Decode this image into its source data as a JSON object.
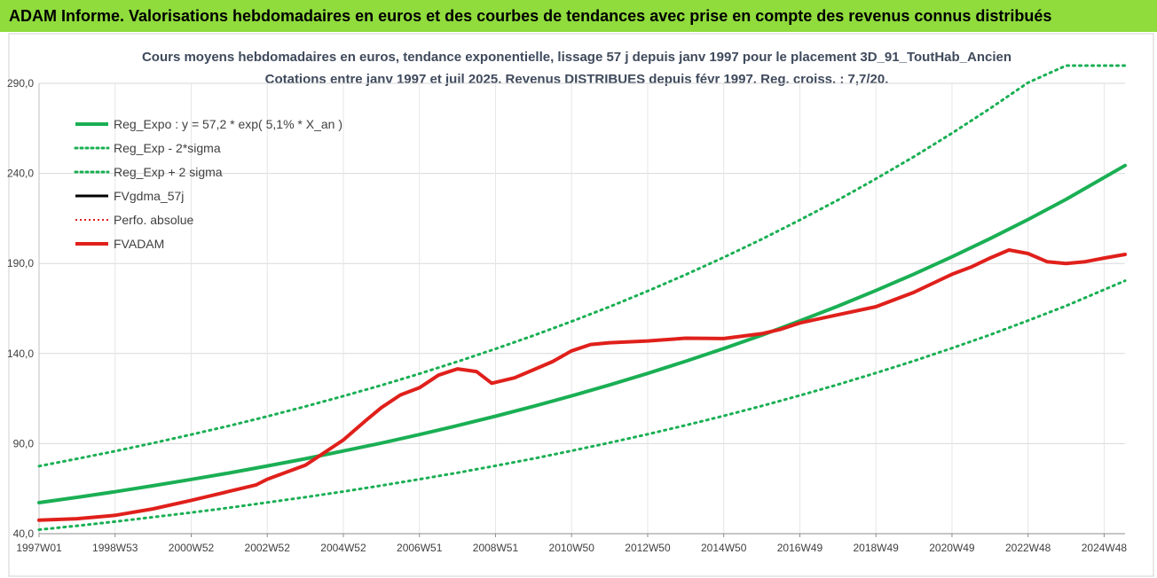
{
  "banner": {
    "title": "ADAM Informe. Valorisations hebdomadaires en euros et des courbes de tendances avec prise en compte des revenus connus distribués"
  },
  "colors": {
    "banner_bg": "#8fdc3c",
    "reg_expo": "#1aaf54",
    "fvgdma": "#000000",
    "perfo": "#e0201b",
    "fvadam": "#e0201b"
  },
  "chart_data": {
    "type": "line",
    "title": "Cours moyens hebdomadaires en euros, tendance exponentielle, lissage 57 j depuis janv 1997 pour le placement 3D_91_ToutHab_Ancien",
    "subtitle": "Cotations entre janv 1997 et juil 2025. Revenus DISTRIBUES depuis févr 1997. Reg. croiss. : 7,7/20.",
    "xlabel": "",
    "ylabel": "",
    "ylim": [
      40,
      290
    ],
    "yticks": [
      "40,0",
      "90,0",
      "140,0",
      "190,0",
      "240,0",
      "290,0"
    ],
    "yticks_values": [
      40,
      90,
      140,
      190,
      240,
      290
    ],
    "xlim": [
      1997.0,
      2025.55
    ],
    "xticks": [
      "1997W01",
      "1998W53",
      "2000W52",
      "2002W52",
      "2004W52",
      "2006W51",
      "2008W51",
      "2010W50",
      "2012W50",
      "2014W50",
      "2016W49",
      "2018W49",
      "2020W49",
      "2022W48",
      "2024W48"
    ],
    "xticks_values": [
      1997.0,
      1999.0,
      2001.0,
      2003.0,
      2005.0,
      2007.0,
      2009.0,
      2011.0,
      2013.0,
      2015.0,
      2017.0,
      2019.0,
      2021.0,
      2023.0,
      2025.0
    ],
    "grid": true,
    "legend_position": "top-left",
    "series": [
      {
        "name": "Reg_Expo : y = 57,2 * exp( 5,1% *  X_an )",
        "style": "solid-thick",
        "color": "#1aaf54",
        "x": [
          1997,
          1998,
          1999,
          2000,
          2001,
          2002,
          2003,
          2004,
          2005,
          2006,
          2007,
          2008,
          2009,
          2010,
          2011,
          2012,
          2013,
          2014,
          2015,
          2016,
          2017,
          2018,
          2019,
          2020,
          2021,
          2022,
          2023,
          2024,
          2025.55
        ],
        "values": [
          57.2,
          60.2,
          63.3,
          66.6,
          70.1,
          73.7,
          77.6,
          81.6,
          85.9,
          90.3,
          95.0,
          100.0,
          105.2,
          110.7,
          116.5,
          122.6,
          129.0,
          135.7,
          142.8,
          150.2,
          158.1,
          166.3,
          175.0,
          184.1,
          193.7,
          203.8,
          214.4,
          225.6,
          244.4
        ]
      },
      {
        "name": "Reg_Exp - 2*sigma",
        "style": "dotted",
        "color": "#1aaf54",
        "x": [
          1997,
          1998,
          1999,
          2000,
          2001,
          2002,
          2003,
          2004,
          2005,
          2006,
          2007,
          2008,
          2009,
          2010,
          2011,
          2012,
          2013,
          2014,
          2015,
          2016,
          2017,
          2018,
          2019,
          2020,
          2021,
          2022,
          2023,
          2024,
          2025.55
        ],
        "values": [
          42.2,
          44.4,
          46.7,
          49.2,
          51.7,
          54.4,
          57.3,
          60.3,
          63.4,
          66.7,
          70.2,
          73.8,
          77.7,
          81.7,
          86.0,
          90.5,
          95.2,
          100.2,
          105.4,
          110.9,
          116.7,
          122.8,
          129.2,
          135.9,
          143.0,
          150.4,
          158.3,
          166.5,
          180.4
        ]
      },
      {
        "name": "Reg_Exp + 2 sigma",
        "style": "dotted",
        "color": "#1aaf54",
        "x": [
          1997,
          1998,
          1999,
          2000,
          2001,
          2002,
          2003,
          2004,
          2005,
          2006,
          2007,
          2008,
          2009,
          2010,
          2011,
          2012,
          2013,
          2014,
          2015,
          2016,
          2017,
          2018,
          2019,
          2020,
          2021,
          2022,
          2023,
          2024,
          2024.3,
          2025.55
        ],
        "values": [
          77.5,
          81.6,
          85.8,
          90.3,
          95.0,
          99.9,
          105.1,
          110.6,
          116.4,
          122.4,
          128.8,
          135.5,
          142.6,
          150.0,
          157.8,
          166.0,
          174.7,
          183.8,
          193.4,
          203.5,
          214.1,
          225.2,
          237.0,
          249.3,
          262.3,
          276.0,
          290.4,
          305.5,
          300,
          300
        ]
      },
      {
        "name": "FVgdma_57j",
        "style": "solid-thin",
        "color": "#000000",
        "x": [
          1997,
          1998,
          1999,
          2000,
          2001,
          2002,
          2002.7,
          2003,
          2004,
          2005,
          2005.6,
          2006,
          2006.5,
          2007,
          2007.5,
          2008,
          2008.5,
          2008.9,
          2009.5,
          2010,
          2010.5,
          2011,
          2011.5,
          2012,
          2013,
          2014,
          2015,
          2016,
          2016.5,
          2017,
          2018,
          2019,
          2020,
          2020.6,
          2021,
          2021.5,
          2022,
          2022.5,
          2023,
          2023.5,
          2024,
          2024.5,
          2025,
          2025.55
        ],
        "values": [
          47.5,
          48.3,
          50.2,
          53.8,
          58.5,
          63.5,
          67,
          70.2,
          78,
          92,
          103,
          110,
          117,
          121,
          128,
          131.5,
          130,
          123.5,
          126.5,
          131,
          135.5,
          141.5,
          145,
          146,
          147,
          148.5,
          148.3,
          151,
          153.5,
          157,
          161.5,
          166,
          174,
          180,
          184,
          188,
          193,
          197.5,
          195.5,
          191,
          190,
          191,
          193,
          195
        ]
      },
      {
        "name": "Perfo. absolue",
        "style": "dotted",
        "color": "#e0201b",
        "x": [
          1997,
          1998,
          1999,
          2000,
          2001,
          2002,
          2002.7,
          2003,
          2004,
          2005,
          2005.6,
          2006,
          2006.5,
          2007,
          2007.5,
          2008,
          2008.5,
          2008.9,
          2009.5,
          2010,
          2010.5,
          2011,
          2011.5,
          2012,
          2013,
          2014,
          2015,
          2016,
          2016.5,
          2017,
          2018,
          2019,
          2020,
          2020.6,
          2021,
          2021.5,
          2022,
          2022.5,
          2023,
          2023.5,
          2024,
          2024.5,
          2025,
          2025.55
        ],
        "values": [
          47.5,
          48.3,
          50.2,
          53.8,
          58.5,
          63.5,
          67,
          70.2,
          78,
          92,
          103,
          110,
          117,
          121,
          128,
          131.5,
          130,
          123.5,
          126.5,
          131,
          135.5,
          141.5,
          145,
          146,
          147,
          148.5,
          148.3,
          151,
          153.5,
          157,
          161.5,
          166,
          174,
          180,
          184,
          188,
          193,
          197.5,
          195.5,
          191,
          190,
          191,
          193,
          195
        ]
      },
      {
        "name": "FVADAM",
        "style": "solid-thick",
        "color": "#e0201b",
        "x": [
          1997,
          1998,
          1999,
          2000,
          2001,
          2002,
          2002.7,
          2003,
          2004,
          2005,
          2005.6,
          2006,
          2006.5,
          2007,
          2007.5,
          2008,
          2008.5,
          2008.9,
          2009.5,
          2010,
          2010.5,
          2011,
          2011.5,
          2012,
          2013,
          2014,
          2015,
          2016,
          2016.5,
          2017,
          2018,
          2019,
          2020,
          2020.6,
          2021,
          2021.5,
          2022,
          2022.5,
          2023,
          2023.5,
          2024,
          2024.5,
          2025,
          2025.55
        ],
        "values": [
          47.5,
          48.3,
          50.2,
          53.8,
          58.5,
          63.5,
          67,
          70.2,
          78,
          92,
          103,
          110,
          117,
          121,
          128,
          131.5,
          130,
          123.5,
          126.5,
          131,
          135.5,
          141.5,
          145,
          146,
          147,
          148.5,
          148.3,
          151,
          153.5,
          157,
          161.5,
          166,
          174,
          180,
          184,
          188,
          193,
          197.5,
          195.5,
          191,
          190,
          191,
          193,
          195
        ]
      }
    ]
  }
}
